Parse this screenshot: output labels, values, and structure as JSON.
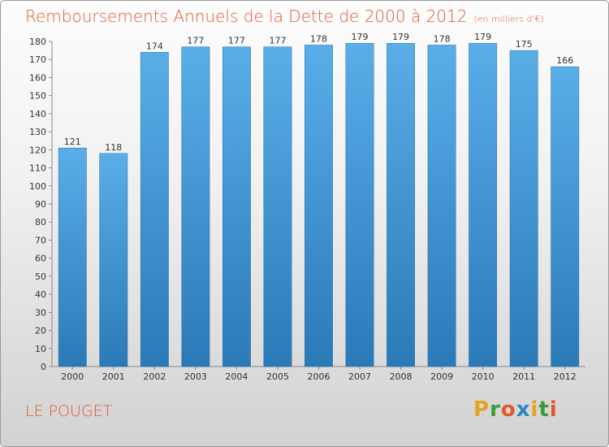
{
  "header": {
    "title": "Remboursements Annuels de la Dette de 2000 à 2012",
    "unit": "(en milliers d'€)"
  },
  "footer": {
    "place": "LE POUGET",
    "brand": "Proxiti"
  },
  "colors": {
    "title": "#e2582a",
    "bar_top": "#5aaee8",
    "bar_bottom": "#2a7ab8",
    "brand_letters": [
      "#e8a020",
      "#3a9a3a",
      "#e2582a",
      "#2a88c8",
      "#e8a020",
      "#3a9a3a",
      "#e2582a"
    ]
  },
  "chart_data": {
    "type": "bar",
    "categories": [
      "2000",
      "2001",
      "2002",
      "2003",
      "2004",
      "2005",
      "2006",
      "2007",
      "2008",
      "2009",
      "2010",
      "2011",
      "2012"
    ],
    "values": [
      121,
      118,
      174,
      177,
      177,
      177,
      178,
      179,
      179,
      178,
      179,
      175,
      166
    ],
    "title": "Remboursements Annuels de la Dette de 2000 à 2012",
    "ylim": [
      0,
      180
    ],
    "yticks": [
      0,
      10,
      20,
      30,
      40,
      50,
      60,
      70,
      80,
      90,
      100,
      110,
      120,
      130,
      140,
      150,
      160,
      170,
      180
    ],
    "grid": false,
    "data_labels": true
  }
}
